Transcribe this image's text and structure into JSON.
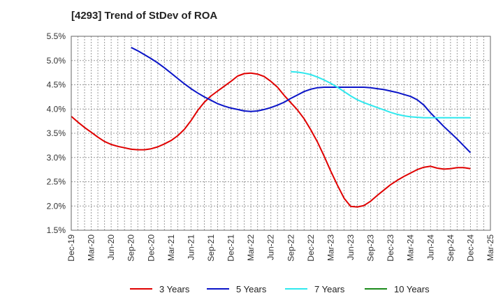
{
  "title": "[4293]  Trend of StDev of ROA",
  "colors": {
    "3y": "#e00000",
    "5y": "#0a14c8",
    "7y": "#2ee8ee",
    "10y": "#1a8a1a",
    "grid": "#9a9a9a"
  },
  "chart_data": {
    "type": "line",
    "title": "[4293]  Trend of StDev of ROA",
    "xlabel": "",
    "ylabel": "",
    "ylim": [
      1.5,
      5.5
    ],
    "y_ticks": [
      "5.5%",
      "5.0%",
      "4.5%",
      "4.0%",
      "3.5%",
      "3.0%",
      "2.5%",
      "2.0%",
      "1.5%"
    ],
    "x_ticks": [
      "Dec-19",
      "Mar-20",
      "Jun-20",
      "Sep-20",
      "Dec-20",
      "Mar-21",
      "Jun-21",
      "Sep-21",
      "Dec-21",
      "Mar-22",
      "Jun-22",
      "Sep-22",
      "Dec-22",
      "Mar-23",
      "Jun-23",
      "Sep-23",
      "Dec-23",
      "Mar-24",
      "Jun-24",
      "Sep-24",
      "Dec-24",
      "Mar-25"
    ],
    "grid": true,
    "legend_position": "bottom",
    "series": [
      {
        "name": "3 Years",
        "color": "#e00000",
        "x": [
          "Dec-19",
          "Jan-20",
          "Feb-20",
          "Mar-20",
          "Apr-20",
          "May-20",
          "Jun-20",
          "Jul-20",
          "Aug-20",
          "Sep-20",
          "Oct-20",
          "Nov-20",
          "Dec-20",
          "Jan-21",
          "Feb-21",
          "Mar-21",
          "Apr-21",
          "May-21",
          "Jun-21",
          "Jul-21",
          "Aug-21",
          "Sep-21",
          "Oct-21",
          "Nov-21",
          "Dec-21",
          "Jan-22",
          "Feb-22",
          "Mar-22",
          "Apr-22",
          "May-22",
          "Jun-22",
          "Jul-22",
          "Aug-22",
          "Sep-22",
          "Oct-22",
          "Nov-22",
          "Dec-22",
          "Jan-23",
          "Feb-23",
          "Mar-23",
          "Apr-23",
          "May-23",
          "Jun-23",
          "Jul-23",
          "Aug-23",
          "Sep-23",
          "Oct-23",
          "Nov-23",
          "Dec-23",
          "Jan-24",
          "Feb-24",
          "Mar-24",
          "Apr-24",
          "May-24",
          "Jun-24",
          "Jul-24",
          "Aug-24",
          "Sep-24",
          "Oct-24",
          "Nov-24",
          "Dec-24"
        ],
        "values": [
          3.85,
          3.73,
          3.62,
          3.52,
          3.42,
          3.33,
          3.27,
          3.23,
          3.2,
          3.17,
          3.16,
          3.16,
          3.18,
          3.22,
          3.28,
          3.35,
          3.45,
          3.58,
          3.76,
          3.97,
          4.14,
          4.27,
          4.37,
          4.47,
          4.57,
          4.68,
          4.73,
          4.74,
          4.72,
          4.67,
          4.57,
          4.45,
          4.28,
          4.13,
          3.98,
          3.8,
          3.57,
          3.32,
          3.03,
          2.72,
          2.43,
          2.16,
          1.99,
          1.98,
          2.01,
          2.1,
          2.22,
          2.33,
          2.44,
          2.53,
          2.61,
          2.68,
          2.75,
          2.8,
          2.82,
          2.78,
          2.76,
          2.77,
          2.79,
          2.79,
          2.77
        ]
      },
      {
        "name": "5 Years",
        "color": "#0a14c8",
        "x": [
          "Sep-20",
          "Oct-20",
          "Nov-20",
          "Dec-20",
          "Jan-21",
          "Feb-21",
          "Mar-21",
          "Apr-21",
          "May-21",
          "Jun-21",
          "Jul-21",
          "Aug-21",
          "Sep-21",
          "Oct-21",
          "Nov-21",
          "Dec-21",
          "Jan-22",
          "Feb-22",
          "Mar-22",
          "Apr-22",
          "May-22",
          "Jun-22",
          "Jul-22",
          "Aug-22",
          "Sep-22",
          "Oct-22",
          "Nov-22",
          "Dec-22",
          "Jan-23",
          "Feb-23",
          "Mar-23",
          "Apr-23",
          "May-23",
          "Jun-23",
          "Jul-23",
          "Aug-23",
          "Sep-23",
          "Oct-23",
          "Nov-23",
          "Dec-23",
          "Jan-24",
          "Feb-24",
          "Mar-24",
          "Apr-24",
          "May-24",
          "Jun-24",
          "Jul-24",
          "Aug-24",
          "Sep-24",
          "Oct-24",
          "Nov-24",
          "Dec-24"
        ],
        "values": [
          5.27,
          5.2,
          5.12,
          5.04,
          4.95,
          4.85,
          4.74,
          4.63,
          4.52,
          4.42,
          4.33,
          4.25,
          4.18,
          4.11,
          4.06,
          4.02,
          3.99,
          3.96,
          3.95,
          3.96,
          3.99,
          4.03,
          4.08,
          4.14,
          4.22,
          4.29,
          4.36,
          4.41,
          4.44,
          4.45,
          4.45,
          4.45,
          4.45,
          4.45,
          4.45,
          4.45,
          4.44,
          4.42,
          4.4,
          4.37,
          4.34,
          4.3,
          4.26,
          4.19,
          4.08,
          3.92,
          3.78,
          3.64,
          3.51,
          3.38,
          3.24,
          3.1
        ]
      },
      {
        "name": "7 Years",
        "color": "#2ee8ee",
        "x": [
          "Sep-22",
          "Oct-22",
          "Nov-22",
          "Dec-22",
          "Jan-23",
          "Feb-23",
          "Mar-23",
          "Apr-23",
          "May-23",
          "Jun-23",
          "Jul-23",
          "Aug-23",
          "Sep-23",
          "Oct-23",
          "Nov-23",
          "Dec-23",
          "Jan-24",
          "Feb-24",
          "Mar-24",
          "Apr-24",
          "May-24",
          "Jun-24",
          "Jul-24",
          "Aug-24",
          "Sep-24",
          "Oct-24",
          "Nov-24",
          "Dec-24"
        ],
        "values": [
          4.77,
          4.76,
          4.74,
          4.71,
          4.66,
          4.6,
          4.53,
          4.45,
          4.36,
          4.27,
          4.19,
          4.13,
          4.08,
          4.03,
          3.98,
          3.93,
          3.89,
          3.86,
          3.84,
          3.83,
          3.82,
          3.82,
          3.82,
          3.82,
          3.82,
          3.82,
          3.82,
          3.82
        ]
      },
      {
        "name": "10 Years",
        "color": "#1a8a1a",
        "x": [],
        "values": []
      }
    ]
  }
}
